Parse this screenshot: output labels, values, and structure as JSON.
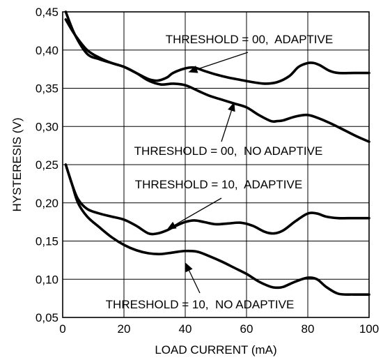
{
  "chart_data": {
    "type": "line",
    "title": "",
    "xlabel": "LOAD CURRENT (mA)",
    "ylabel": "HYSTERESIS (V)",
    "xlim": [
      0,
      100
    ],
    "ylim": [
      0.05,
      0.45
    ],
    "x_ticks": [
      "0",
      "20",
      "40",
      "60",
      "80",
      "100"
    ],
    "y_ticks": [
      "0,05",
      "0,10",
      "0,15",
      "0,20",
      "0,25",
      "0,30",
      "0,35",
      "0,40",
      "0,45"
    ],
    "grid": true,
    "line_color": "#000000",
    "series": [
      {
        "name": "THRESHOLD = 00, ADAPTIVE",
        "x": [
          1,
          4,
          8,
          12,
          16,
          20,
          24,
          28,
          31,
          34,
          36,
          40,
          43,
          46,
          50,
          54,
          58,
          62,
          66,
          70,
          74,
          77,
          80,
          82,
          84,
          87,
          90,
          95,
          100
        ],
        "y": [
          0.45,
          0.42,
          0.395,
          0.388,
          0.383,
          0.378,
          0.37,
          0.362,
          0.36,
          0.364,
          0.37,
          0.376,
          0.377,
          0.373,
          0.368,
          0.364,
          0.361,
          0.358,
          0.356,
          0.358,
          0.366,
          0.378,
          0.383,
          0.383,
          0.38,
          0.373,
          0.37,
          0.37,
          0.37
        ]
      },
      {
        "name": "THRESHOLD = 00, NO ADAPTIVE",
        "x": [
          1,
          4,
          8,
          12,
          16,
          20,
          24,
          28,
          32,
          36,
          40,
          44,
          48,
          52,
          56,
          60,
          64,
          68,
          70,
          72,
          76,
          80,
          84,
          88,
          92,
          96,
          100
        ],
        "y": [
          0.44,
          0.42,
          0.4,
          0.39,
          0.383,
          0.378,
          0.37,
          0.36,
          0.355,
          0.356,
          0.354,
          0.347,
          0.34,
          0.335,
          0.33,
          0.325,
          0.315,
          0.307,
          0.307,
          0.308,
          0.313,
          0.315,
          0.31,
          0.303,
          0.295,
          0.287,
          0.28
        ]
      },
      {
        "name": "THRESHOLD = 10, ADAPTIVE",
        "x": [
          1,
          3,
          5,
          8,
          12,
          16,
          20,
          24,
          28,
          31,
          34,
          37,
          40,
          43,
          46,
          50,
          54,
          58,
          62,
          66,
          69,
          72,
          76,
          80,
          83,
          86,
          90,
          95,
          100
        ],
        "y": [
          0.25,
          0.225,
          0.205,
          0.192,
          0.186,
          0.182,
          0.178,
          0.17,
          0.16,
          0.16,
          0.164,
          0.17,
          0.175,
          0.177,
          0.175,
          0.172,
          0.173,
          0.174,
          0.17,
          0.162,
          0.16,
          0.164,
          0.176,
          0.186,
          0.186,
          0.182,
          0.18,
          0.18,
          0.18
        ]
      },
      {
        "name": "THRESHOLD = 10, NO ADAPTIVE",
        "x": [
          1,
          3,
          5,
          8,
          12,
          16,
          20,
          24,
          28,
          32,
          36,
          40,
          44,
          48,
          52,
          56,
          60,
          64,
          68,
          70,
          72,
          76,
          80,
          83,
          86,
          90,
          95,
          100
        ],
        "y": [
          0.25,
          0.225,
          0.2,
          0.182,
          0.168,
          0.155,
          0.145,
          0.138,
          0.134,
          0.133,
          0.135,
          0.137,
          0.136,
          0.13,
          0.123,
          0.115,
          0.107,
          0.097,
          0.09,
          0.089,
          0.09,
          0.097,
          0.102,
          0.1,
          0.09,
          0.081,
          0.08,
          0.08
        ]
      }
    ],
    "annotations": [
      {
        "text": "THRESHOLD = 00,  ADAPTIVE",
        "arrow_to": [
          41,
          0.371
        ]
      },
      {
        "text": "THRESHOLD = 00,  NO ADAPTIVE",
        "arrow_to": [
          56,
          0.332
        ]
      },
      {
        "text": "THRESHOLD = 10,  ADAPTIVE",
        "arrow_to": [
          34,
          0.165
        ]
      },
      {
        "text": "THRESHOLD = 10,  NO ADAPTIVE",
        "arrow_to": [
          40,
          0.122
        ]
      }
    ]
  }
}
